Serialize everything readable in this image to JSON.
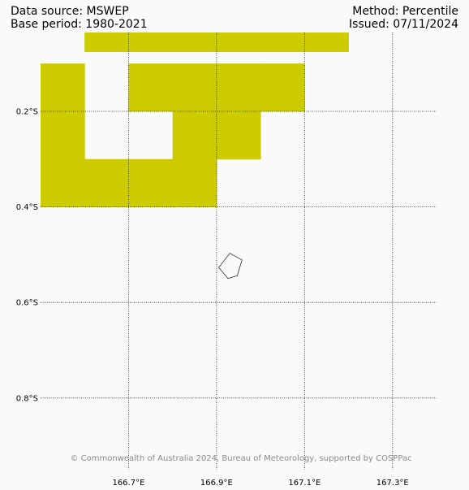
{
  "header": {
    "data_source": "Data source: MSWEP",
    "base_period": "Base period: 1980-2021",
    "method": "Method: Percentile",
    "issued": "Issued: 07/11/2024"
  },
  "map": {
    "lon_range": [
      166.5,
      167.4
    ],
    "lat_range": [
      -0.95,
      -0.035
    ],
    "fill_color": "#cccc00",
    "gridlines": "dotted",
    "lon_ticks": [
      {
        "value": 166.7,
        "label": "166.7°E"
      },
      {
        "value": 166.9,
        "label": "166.9°E"
      },
      {
        "value": 167.1,
        "label": "167.1°E"
      },
      {
        "value": 167.3,
        "label": "167.3°E"
      }
    ],
    "lat_ticks": [
      {
        "value": -0.2,
        "label": "0.2°S"
      },
      {
        "value": -0.4,
        "label": "0.4°S"
      },
      {
        "value": -0.6,
        "label": "0.6°S"
      },
      {
        "value": -0.8,
        "label": "0.8°S"
      }
    ],
    "grid_cell_size_deg": 0.1,
    "shaded_cells": [
      {
        "lon": 166.6,
        "lat": -0.05
      },
      {
        "lon": 166.7,
        "lat": -0.05
      },
      {
        "lon": 166.8,
        "lat": -0.05
      },
      {
        "lon": 166.9,
        "lat": -0.05
      },
      {
        "lon": 167.0,
        "lat": -0.05
      },
      {
        "lon": 167.1,
        "lat": -0.05
      },
      {
        "lon": 166.5,
        "lat": -0.1
      },
      {
        "lon": 166.7,
        "lat": -0.1
      },
      {
        "lon": 166.8,
        "lat": -0.1
      },
      {
        "lon": 166.9,
        "lat": -0.1
      },
      {
        "lon": 167.0,
        "lat": -0.1
      },
      {
        "lon": 166.5,
        "lat": -0.2
      },
      {
        "lon": 166.8,
        "lat": -0.2
      },
      {
        "lon": 166.9,
        "lat": -0.2
      },
      {
        "lon": 166.5,
        "lat": -0.3
      },
      {
        "lon": 166.6,
        "lat": -0.3
      },
      {
        "lon": 166.7,
        "lat": -0.3
      },
      {
        "lon": 166.8,
        "lat": -0.3
      }
    ],
    "island_outline": [
      [
        166.905,
        -0.527
      ],
      [
        166.93,
        -0.497
      ],
      [
        166.958,
        -0.511
      ],
      [
        166.947,
        -0.544
      ],
      [
        166.926,
        -0.55
      ]
    ],
    "credit": "© Commonwealth of Australia 2024, Bureau of Meteorology, supported by COSPPac"
  }
}
